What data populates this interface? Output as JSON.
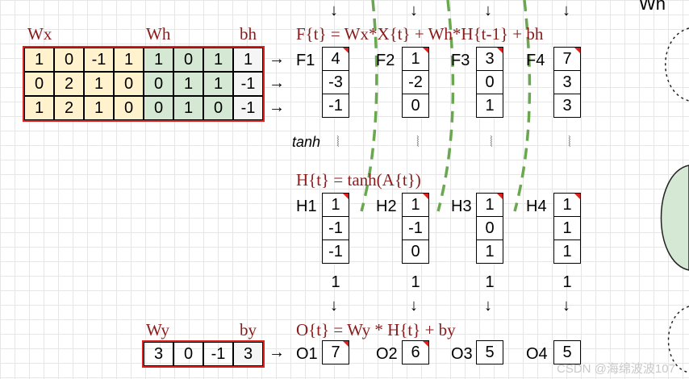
{
  "labels": {
    "wx": "Wx",
    "wh": "Wh",
    "bh": "bh",
    "wy": "Wy",
    "by": "by",
    "tanh": "tanh",
    "top_right": "Wh",
    "f_eq": "F{t} = Wx*X{t} + Wh*H{t-1} + bh",
    "h_eq": "H{t} = tanh(A{t})",
    "o_eq": "O{t} = Wy * H{t} + by"
  },
  "arrow": "→",
  "down_arrow": "↓",
  "squiggle": "⦚",
  "weights_matrix": [
    [
      "1",
      "0",
      "-1",
      "1",
      "1",
      "0",
      "1",
      "1"
    ],
    [
      "0",
      "2",
      "1",
      "0",
      "0",
      "1",
      "1",
      "-1"
    ],
    [
      "1",
      "2",
      "1",
      "0",
      "0",
      "1",
      "0",
      "-1"
    ]
  ],
  "wy_matrix": [
    "3",
    "0",
    "-1",
    "3"
  ],
  "f_vectors": [
    {
      "name": "F1",
      "values": [
        "4",
        "-3",
        "-1"
      ]
    },
    {
      "name": "F2",
      "values": [
        "1",
        "-2",
        "0"
      ]
    },
    {
      "name": "F3",
      "values": [
        "3",
        "0",
        "1"
      ]
    },
    {
      "name": "F4",
      "values": [
        "7",
        "3",
        "3"
      ]
    }
  ],
  "h_vectors": [
    {
      "name": "H1",
      "values": [
        "1",
        "-1",
        "-1"
      ],
      "extra": "1"
    },
    {
      "name": "H2",
      "values": [
        "1",
        "-1",
        "0"
      ],
      "extra": "1"
    },
    {
      "name": "H3",
      "values": [
        "1",
        "0",
        "1"
      ],
      "extra": "1"
    },
    {
      "name": "H4",
      "values": [
        "1",
        "1",
        "1"
      ],
      "extra": "1"
    }
  ],
  "o_vectors": [
    {
      "name": "O1",
      "value": "7"
    },
    {
      "name": "O2",
      "value": "6"
    },
    {
      "name": "O3",
      "value": "5"
    },
    {
      "name": "O4",
      "value": "5"
    }
  ],
  "watermark": "CSDN @海绵波波107",
  "colors": {
    "red_border": "#e0201c",
    "yellow": "#fff2cc",
    "green": "#d5e8d4",
    "dashed_green": "#6aa84f",
    "equation": "#8b1a1a"
  }
}
